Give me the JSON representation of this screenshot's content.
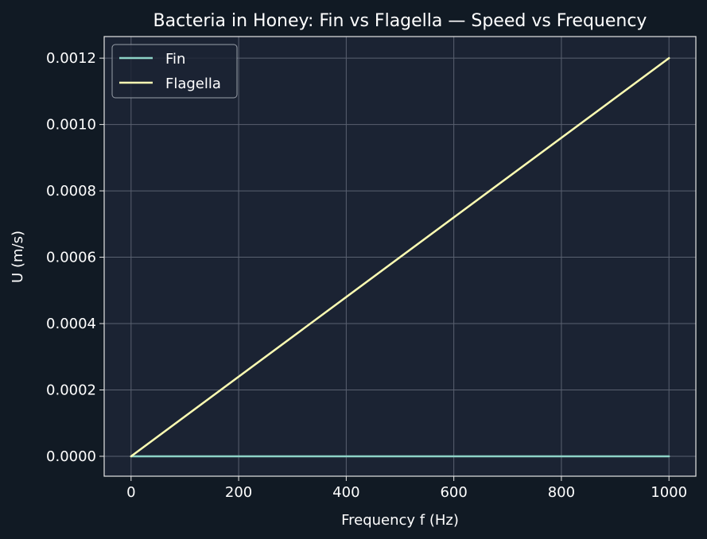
{
  "colors": {
    "figure_bg": "#111a24",
    "axes_bg": "#1b2333",
    "grid": "#5a6170",
    "spine": "#e6e6e6",
    "text": "#ffffff",
    "fin": "#8dd3c7",
    "flagella": "#ffffb3"
  },
  "chart_data": {
    "type": "line",
    "title": "Bacteria in Honey: Fin vs Flagella — Speed vs Frequency",
    "xlabel": "Frequency f (Hz)",
    "ylabel": "U (m/s)",
    "xlim": [
      -50,
      1050
    ],
    "ylim": [
      -6e-05,
      0.001265
    ],
    "xticks": [
      0,
      200,
      400,
      600,
      800,
      1000
    ],
    "xtick_labels": [
      "0",
      "200",
      "400",
      "600",
      "800",
      "1000"
    ],
    "yticks": [
      0,
      0.0002,
      0.0004,
      0.0006,
      0.0008,
      0.001,
      0.0012
    ],
    "ytick_labels": [
      "0.0000",
      "0.0002",
      "0.0004",
      "0.0006",
      "0.0008",
      "0.0010",
      "0.0012"
    ],
    "grid": true,
    "legend_position": "top-left",
    "series": [
      {
        "name": "Fin",
        "color": "#8dd3c7",
        "x": [
          0,
          1000
        ],
        "y": [
          0,
          0
        ]
      },
      {
        "name": "Flagella",
        "color": "#ffffb3",
        "x": [
          0,
          1000
        ],
        "y": [
          0,
          0.0012
        ]
      }
    ]
  }
}
